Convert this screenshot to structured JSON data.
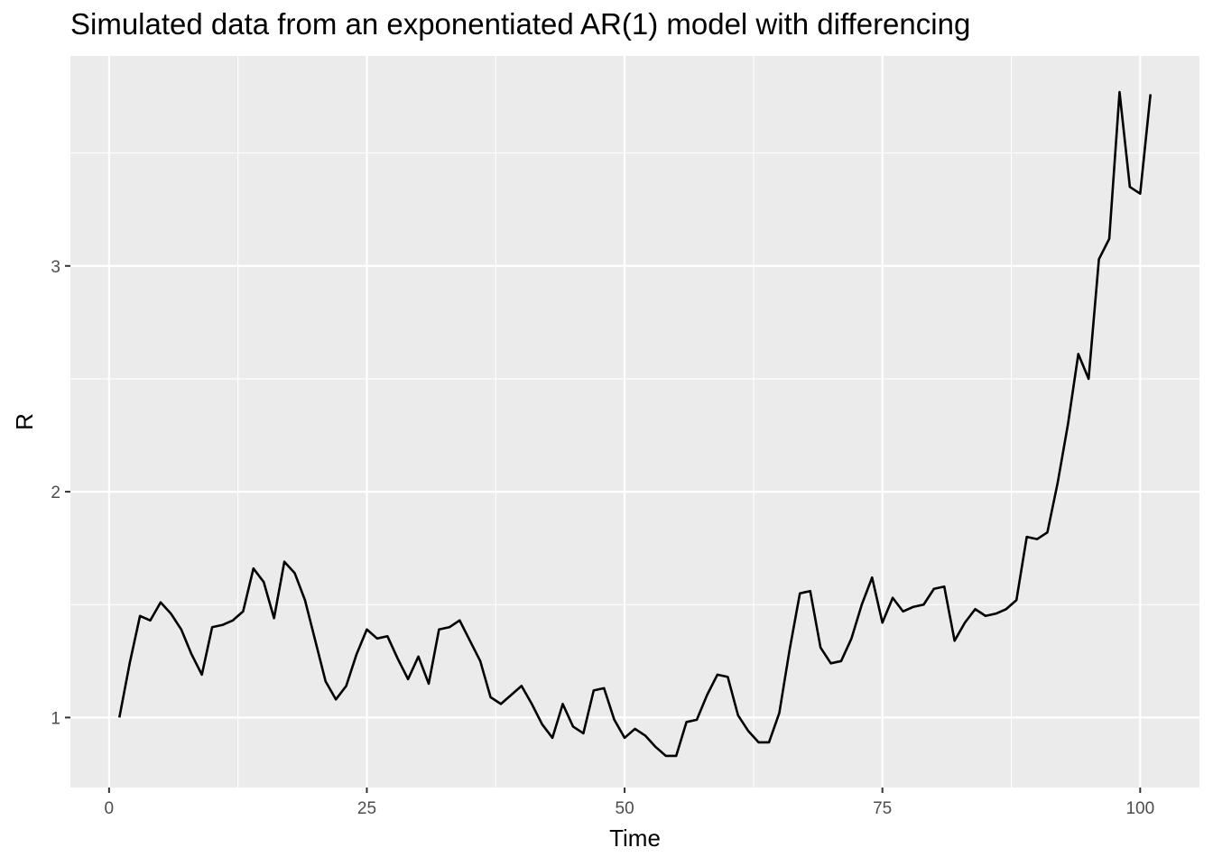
{
  "chart_data": {
    "type": "line",
    "title": "Simulated data from an exponentiated AR(1) model with differencing",
    "xlabel": "Time",
    "ylabel": "R",
    "xlim": [
      -3.75,
      105.75
    ],
    "ylim": [
      0.69,
      3.93
    ],
    "x_ticks": [
      0,
      25,
      50,
      75,
      100
    ],
    "x_tick_labels": [
      "0",
      "25",
      "50",
      "75",
      "100"
    ],
    "y_ticks": [
      1,
      2,
      3
    ],
    "y_tick_labels": [
      "1",
      "2",
      "3"
    ],
    "grid": true,
    "legend": "none",
    "series": [
      {
        "color": "#000000",
        "x": [
          1,
          2,
          3,
          4,
          5,
          6,
          7,
          8,
          9,
          10,
          11,
          12,
          13,
          14,
          15,
          16,
          17,
          18,
          19,
          20,
          21,
          22,
          23,
          24,
          25,
          26,
          27,
          28,
          29,
          30,
          31,
          32,
          33,
          34,
          35,
          36,
          37,
          38,
          39,
          40,
          41,
          42,
          43,
          44,
          45,
          46,
          47,
          48,
          49,
          50,
          51,
          52,
          53,
          54,
          55,
          56,
          57,
          58,
          59,
          60,
          61,
          62,
          63,
          64,
          65,
          66,
          67,
          68,
          69,
          70,
          71,
          72,
          73,
          74,
          75,
          76,
          77,
          78,
          79,
          80,
          81,
          82,
          83,
          84,
          85,
          86,
          87,
          88,
          89,
          90,
          91,
          92,
          93,
          94,
          95,
          96,
          97,
          98,
          99,
          100,
          101
        ],
        "y": [
          1.0,
          1.24,
          1.45,
          1.43,
          1.51,
          1.46,
          1.39,
          1.28,
          1.19,
          1.4,
          1.41,
          1.43,
          1.47,
          1.66,
          1.6,
          1.44,
          1.69,
          1.64,
          1.52,
          1.34,
          1.16,
          1.08,
          1.14,
          1.28,
          1.39,
          1.35,
          1.36,
          1.26,
          1.17,
          1.27,
          1.15,
          1.39,
          1.4,
          1.43,
          1.34,
          1.25,
          1.09,
          1.06,
          1.1,
          1.14,
          1.06,
          0.97,
          0.91,
          1.06,
          0.96,
          0.93,
          1.12,
          1.13,
          0.99,
          0.91,
          0.95,
          0.92,
          0.87,
          0.83,
          0.83,
          0.98,
          0.99,
          1.1,
          1.19,
          1.18,
          1.01,
          0.94,
          0.89,
          0.89,
          1.02,
          1.3,
          1.55,
          1.56,
          1.31,
          1.24,
          1.25,
          1.35,
          1.5,
          1.62,
          1.42,
          1.53,
          1.47,
          1.49,
          1.5,
          1.57,
          1.58,
          1.34,
          1.42,
          1.48,
          1.45,
          1.46,
          1.48,
          1.52,
          1.8,
          1.79,
          1.82,
          2.04,
          2.3,
          2.61,
          2.5,
          3.03,
          3.12,
          3.77,
          3.35,
          3.32,
          3.76
        ]
      }
    ]
  }
}
